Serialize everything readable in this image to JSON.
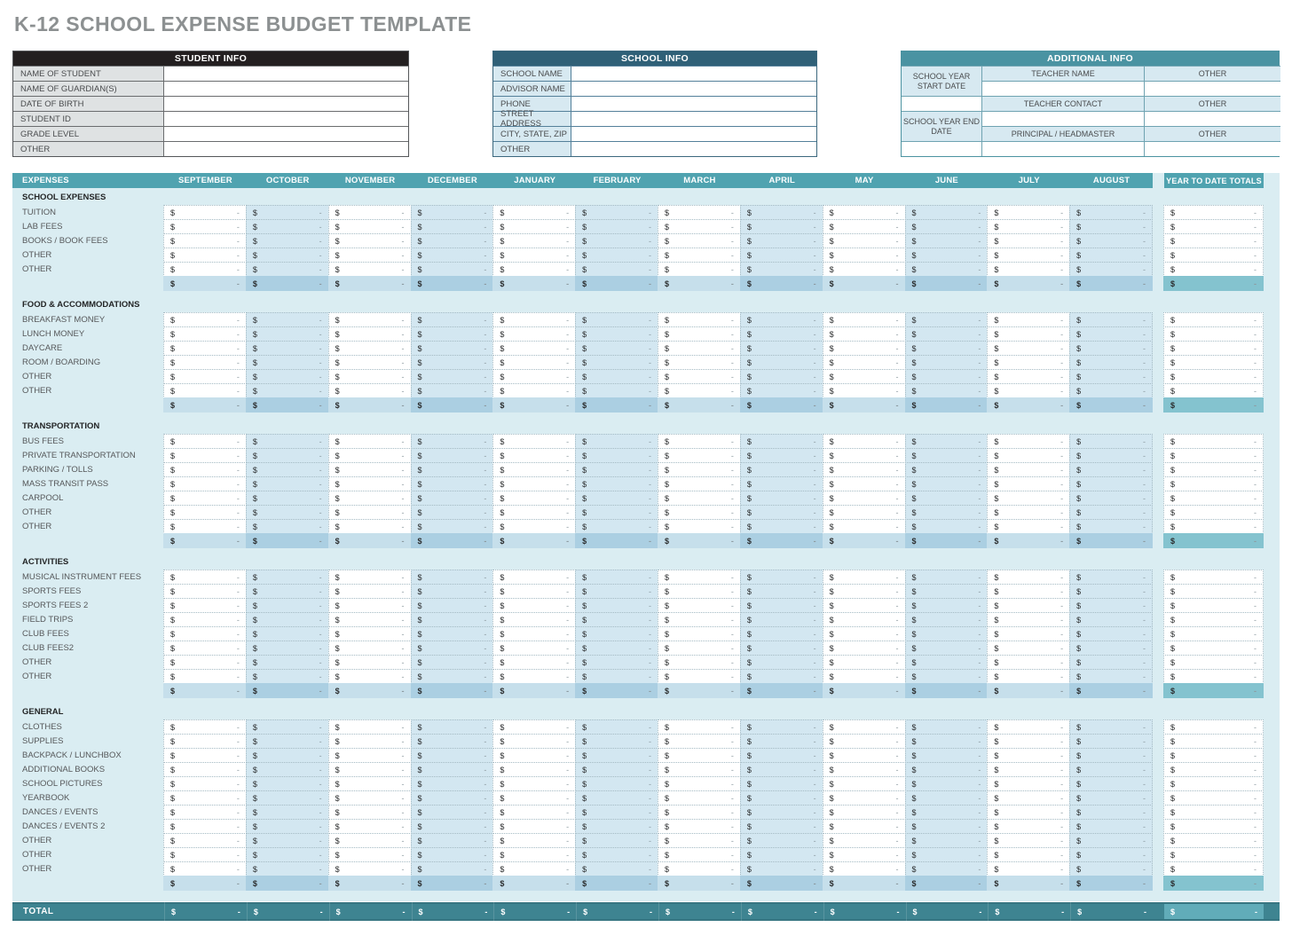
{
  "title": "K-12 SCHOOL EXPENSE BUDGET TEMPLATE",
  "info_boxes": {
    "student": {
      "header": "STUDENT INFO",
      "fields": [
        "NAME OF STUDENT",
        "NAME OF GUARDIAN(S)",
        "DATE OF BIRTH",
        "STUDENT ID",
        "GRADE LEVEL",
        "OTHER"
      ]
    },
    "school": {
      "header": "SCHOOL INFO",
      "fields": [
        "SCHOOL NAME",
        "ADVISOR NAME",
        "PHONE",
        "STREET ADDRESS",
        "CITY, STATE, ZIP",
        "OTHER"
      ]
    },
    "additional": {
      "header": "ADDITIONAL INFO",
      "date_labels": [
        "SCHOOL YEAR START DATE",
        "SCHOOL YEAR END DATE"
      ],
      "contact_rows": [
        {
          "name": "TEACHER NAME",
          "other": "OTHER"
        },
        {
          "name": "TEACHER CONTACT",
          "other": "OTHER"
        },
        {
          "name": "PRINCIPAL / HEADMASTER",
          "other": "OTHER"
        }
      ]
    }
  },
  "budget": {
    "expenses_header": "EXPENSES",
    "months": [
      "SEPTEMBER",
      "OCTOBER",
      "NOVEMBER",
      "DECEMBER",
      "JANUARY",
      "FEBRUARY",
      "MARCH",
      "APRIL",
      "MAY",
      "JUNE",
      "JULY",
      "AUGUST"
    ],
    "ytd_header": "YEAR TO DATE TOTALS",
    "currency": "$",
    "placeholder": "-",
    "sections": [
      {
        "name": "SCHOOL EXPENSES",
        "rows": [
          "TUITION",
          "LAB FEES",
          "BOOKS / BOOK FEES",
          "OTHER",
          "OTHER"
        ]
      },
      {
        "name": "FOOD & ACCOMMODATIONS",
        "rows": [
          "BREAKFAST MONEY",
          "LUNCH MONEY",
          "DAYCARE",
          "ROOM / BOARDING",
          "OTHER",
          "OTHER"
        ]
      },
      {
        "name": "TRANSPORTATION",
        "rows": [
          "BUS FEES",
          "PRIVATE TRANSPORTATION",
          "PARKING / TOLLS",
          "MASS TRANSIT PASS",
          "CARPOOL",
          "OTHER",
          "OTHER"
        ]
      },
      {
        "name": "ACTIVITIES",
        "rows": [
          "MUSICAL INSTRUMENT FEES",
          "SPORTS FEES",
          "SPORTS FEES 2",
          "FIELD TRIPS",
          "CLUB FEES",
          "CLUB FEES2",
          "OTHER",
          "OTHER"
        ]
      },
      {
        "name": "GENERAL",
        "rows": [
          "CLOTHES",
          "SUPPLIES",
          "BACKPACK / LUNCHBOX",
          "ADDITIONAL BOOKS",
          "SCHOOL PICTURES",
          "YEARBOOK",
          "DANCES / EVENTS",
          "DANCES / EVENTS 2",
          "OTHER",
          "OTHER",
          "OTHER"
        ]
      }
    ],
    "total_label": "TOTAL"
  },
  "colors": {
    "student_header": "#231f20",
    "school_header": "#2f6077",
    "additional_header": "#4a93a2",
    "info_label_gray": "#dfe2e3",
    "info_label_blue": "#d7e9f1",
    "table_header": "#50a3b0",
    "table_bg": "#daedf2",
    "alt_cell": "#d3e7f1",
    "subtotal_light": "#c6dfeb",
    "subtotal_dark": "#abcfe2",
    "subtotal_ytd": "#84c3cf",
    "total_bar": "#3e8491",
    "total_ytd": "#61acb9"
  }
}
